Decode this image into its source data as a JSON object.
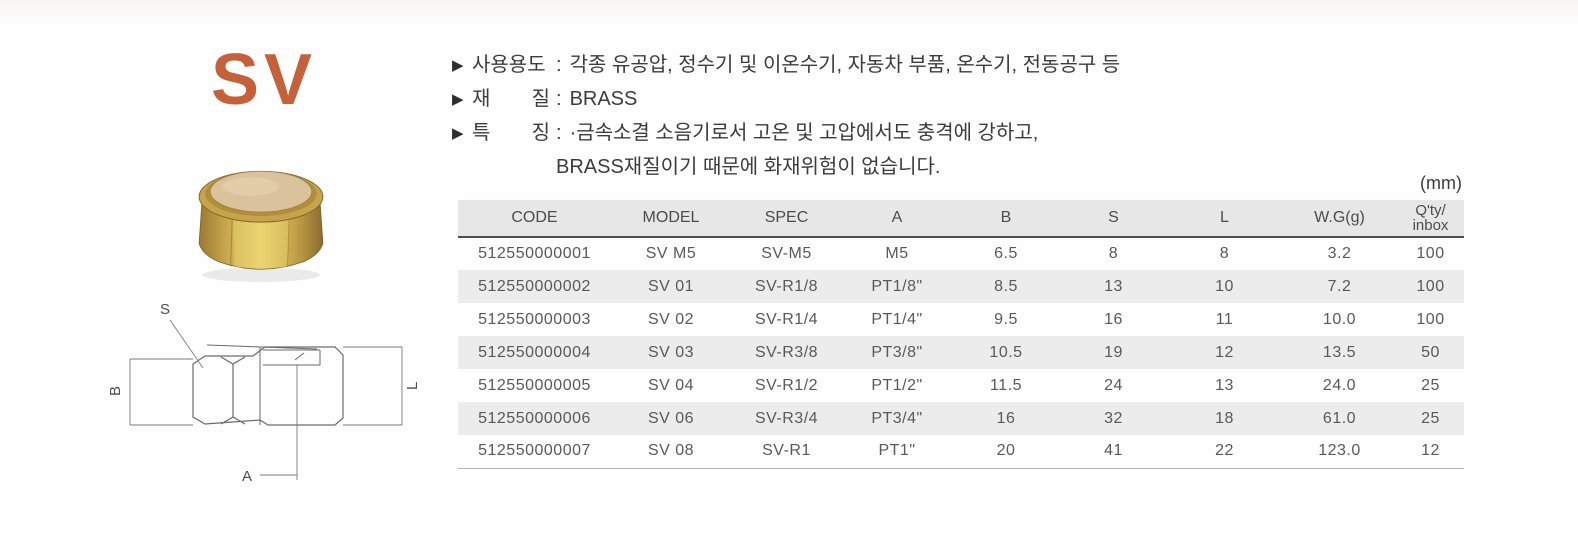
{
  "brand": {
    "label": "SV"
  },
  "colors": {
    "accent": "#c4613b",
    "row_shade": "#ececec",
    "table_text": "#58595b"
  },
  "info": {
    "line1": {
      "bullet": "▶",
      "label": "사용용도",
      "colon": ":",
      "text": "각종 유공압, 정수기 및 이온수기, 자동차 부품, 온수기, 전동공구 등"
    },
    "line2": {
      "bullet": "▶",
      "label": "재 질",
      "colon": ":",
      "text": "BRASS"
    },
    "line3": {
      "bullet": "▶",
      "label": "특 징",
      "colon": ":",
      "text": "·금속소결 소음기로서 고온 및 고압에서도 충격에 강하고,"
    },
    "line4": {
      "text": "BRASS재질이기 때문에 화재위험이 없습니다."
    }
  },
  "table": {
    "unit_label": "(mm)",
    "headers": [
      "CODE",
      "MODEL",
      "SPEC",
      "A",
      "B",
      "S",
      "L",
      "W.G(g)"
    ],
    "qty_header_line1": "Q'ty/",
    "qty_header_line2": "inbox",
    "rows": [
      [
        "512550000001",
        "SV M5",
        "SV-M5",
        "M5",
        "6.5",
        "8",
        "8",
        "3.2",
        "100"
      ],
      [
        "512550000002",
        "SV 01",
        "SV-R1/8",
        "PT1/8\"",
        "8.5",
        "13",
        "10",
        "7.2",
        "100"
      ],
      [
        "512550000003",
        "SV 02",
        "SV-R1/4",
        "PT1/4\"",
        "9.5",
        "16",
        "11",
        "10.0",
        "100"
      ],
      [
        "512550000004",
        "SV 03",
        "SV-R3/8",
        "PT3/8\"",
        "10.5",
        "19",
        "12",
        "13.5",
        "50"
      ],
      [
        "512550000005",
        "SV 04",
        "SV-R1/2",
        "PT1/2\"",
        "11.5",
        "24",
        "13",
        "24.0",
        "25"
      ],
      [
        "512550000006",
        "SV 06",
        "SV-R3/4",
        "PT3/4\"",
        "16",
        "32",
        "18",
        "61.0",
        "25"
      ],
      [
        "512550000007",
        "SV 08",
        "SV-R1",
        "PT1\"",
        "20",
        "41",
        "22",
        "123.0",
        "12"
      ]
    ]
  },
  "drawing": {
    "label_s": "S",
    "label_b": "B",
    "label_l": "L",
    "label_a": "A"
  }
}
